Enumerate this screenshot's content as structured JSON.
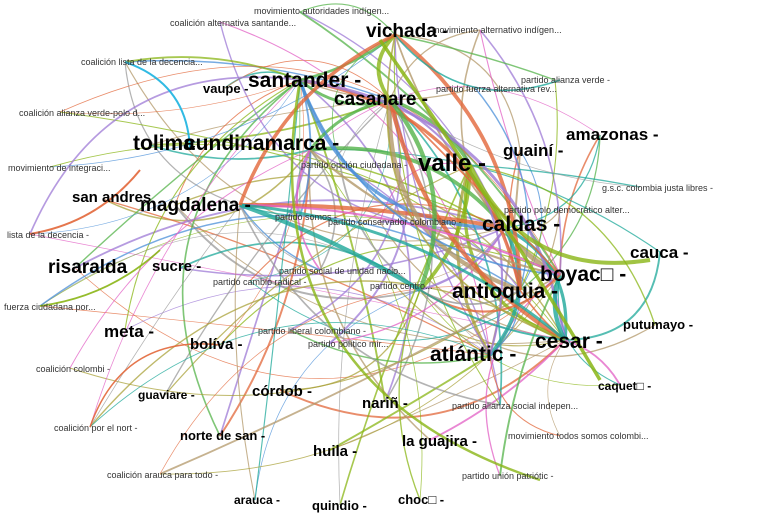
{
  "departments": {
    "vichada": "vichada -",
    "santander": "santander -",
    "casanare": "casanare -",
    "vaupe": "vaupe -",
    "tolima": "tolima",
    "cundinamarca": "cundinamarca -",
    "valle": "valle -",
    "guaini": "guainí -",
    "amazonas": "amazonas -",
    "san_andres": "san andres",
    "magdalena": "magdalena -",
    "caldas": "caldas -",
    "cauca": "cauca -",
    "risaralda": "risaralda",
    "sucre": "sucre -",
    "boyaca": "boyac□ -",
    "antioquia": "antioquia -",
    "putumayo": "putumayo -",
    "meta": "meta -",
    "bolivar": "bolíva -",
    "cesar": "cesar -",
    "atlantico": "atlántic -",
    "caqueta": "caquet□ -",
    "guaviare": "guaviare -",
    "cordoba": "córdob -",
    "narino": "nariñ -",
    "norte_de_santander": "norte de san -",
    "huila": "huila -",
    "la_guajira": "la guajira -",
    "arauca": "arauca -",
    "quindio": "quindio -",
    "choco": "choc□ -"
  },
  "parties": {
    "mov_autoridades": "movimiento autoridades indígen...",
    "coal_alt_santander": "coalición alternativa santande...",
    "mov_alt_indigena": "movimiento alternativo indígen...",
    "coal_lista_decencia": "coalición lista de la decencia...",
    "alianza_verde": "partido alianza verde -",
    "fuerza_alternativa": "partido fuerza alternativa rev...",
    "coal_verde_polo": "coalición alianza verde-polo d...",
    "opcion_ciudadana": "partido opción ciudadana -",
    "mov_integracion": "movimiento de integraci...",
    "colombia_justa": "g.s.c. colombia justa libres -",
    "polo": "partido polo democrático alter...",
    "somos": "partido somos -",
    "conservador": "partido conservador colombiano -",
    "lista_decencia": "lista de la decencia -",
    "social_unidad": "partido social de unidad nacio...",
    "cambio_radical": "partido cambio radical -",
    "centro": "partido centro...",
    "fuerza_ciudadana": "fuerza ciudadana por...",
    "liberal": "partido liberal colombiano -",
    "mira": "partido político mir...",
    "coal_colombia": "coalición colombi -",
    "alianza_social": "partido alianza social indepen...",
    "coal_por_el_norte": "coalición por el nort -",
    "todos_somos": "movimiento todos somos colombi...",
    "union_patriotica": "partido unión patriótic -",
    "coal_arauca": "coalición arauca para todo -"
  },
  "colors": {
    "lime": "#8ab515",
    "tan": "#b3986a",
    "teal": "#1ea89a",
    "pink": "#e15fc4",
    "orange": "#e2673a",
    "blue": "#4a8fd8",
    "cyan": "#1bb3e0",
    "olive": "#a9a13a",
    "purple": "#9d79d6",
    "green": "#54b34a",
    "gray": "#9a9a9a"
  }
}
